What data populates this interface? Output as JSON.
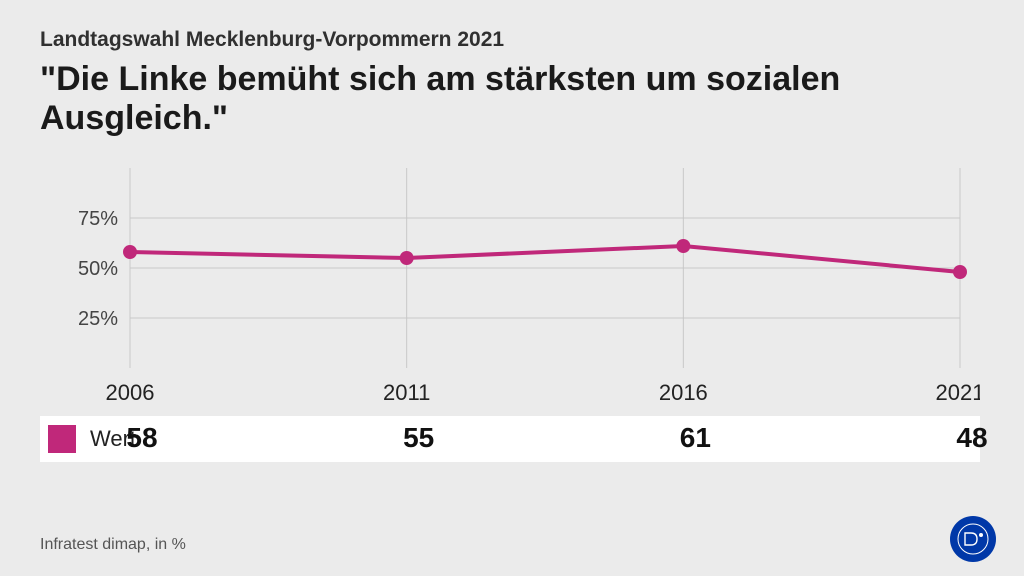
{
  "header": {
    "subtitle": "Landtagswahl Mecklenburg-Vorpommern 2021",
    "title": "\"Die Linke bemüht sich am stärksten um sozialen Ausgleich.\""
  },
  "chart": {
    "type": "line",
    "background_color": "#ebebeb",
    "grid_color": "#c8c8c8",
    "axis_label_color": "#444444",
    "line_color": "#c0287a",
    "marker_color": "#c0287a",
    "marker_radius": 7,
    "line_width": 4,
    "ylim": [
      0,
      100
    ],
    "yticks": [
      25,
      50,
      75
    ],
    "ytick_suffix": "%",
    "categories": [
      "2006",
      "2011",
      "2016",
      "2021"
    ],
    "values": [
      58,
      55,
      61,
      48
    ],
    "series_name": "Wert",
    "font_size_axis": 20,
    "font_size_category": 22,
    "font_size_value": 28
  },
  "data_row": {
    "background_color": "#ffffff",
    "swatch_color": "#c0287a"
  },
  "footer": {
    "source": "Infratest dimap, in %",
    "logo_bg": "#0038a8",
    "logo_text_color": "#ffffff"
  }
}
